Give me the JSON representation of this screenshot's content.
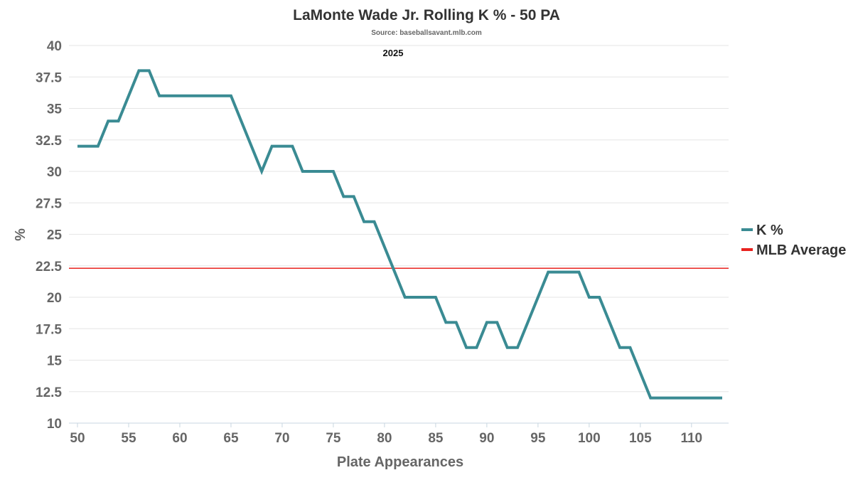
{
  "chart_data": {
    "type": "line",
    "title": "LaMonte Wade Jr. Rolling K % - 50 PA",
    "subtitle": "Source: baseballsavant.mlb.com",
    "annotation": "2025",
    "xlabel": "Plate Appearances",
    "ylabel": "%",
    "xlim": [
      50,
      113
    ],
    "ylim": [
      10,
      40
    ],
    "x_ticks": [
      50,
      55,
      60,
      65,
      70,
      75,
      80,
      85,
      90,
      95,
      100,
      105,
      110
    ],
    "y_ticks": [
      "10",
      "12.5",
      "15",
      "17.5",
      "20",
      "22.5",
      "25",
      "27.5",
      "30",
      "32.5",
      "35",
      "37.5",
      "40"
    ],
    "grid": true,
    "legend_position": "right",
    "series": [
      {
        "name": "K %",
        "color": "#3a8b93",
        "x": [
          50,
          51,
          52,
          53,
          54,
          55,
          56,
          57,
          58,
          59,
          60,
          61,
          62,
          63,
          64,
          65,
          66,
          67,
          68,
          69,
          70,
          71,
          72,
          73,
          74,
          75,
          76,
          77,
          78,
          79,
          80,
          81,
          82,
          83,
          84,
          85,
          86,
          87,
          88,
          89,
          90,
          91,
          92,
          93,
          94,
          95,
          96,
          97,
          98,
          99,
          100,
          101,
          102,
          103,
          104,
          105,
          106,
          107,
          108,
          109,
          110,
          111,
          112,
          113
        ],
        "values": [
          32,
          32,
          32,
          34,
          34,
          36,
          38,
          38,
          36,
          36,
          36,
          36,
          36,
          36,
          36,
          36,
          34,
          32,
          30,
          32,
          32,
          32,
          30,
          30,
          30,
          30,
          28,
          28,
          26,
          26,
          24,
          22,
          20,
          20,
          20,
          20,
          18,
          18,
          16,
          16,
          18,
          18,
          16,
          16,
          18,
          20,
          22,
          22,
          22,
          22,
          20,
          20,
          18,
          16,
          16,
          14,
          12,
          12,
          12,
          12,
          12,
          12,
          12,
          12
        ]
      },
      {
        "name": "MLB Average",
        "color": "#e8231f",
        "constant": 22.3
      }
    ]
  }
}
